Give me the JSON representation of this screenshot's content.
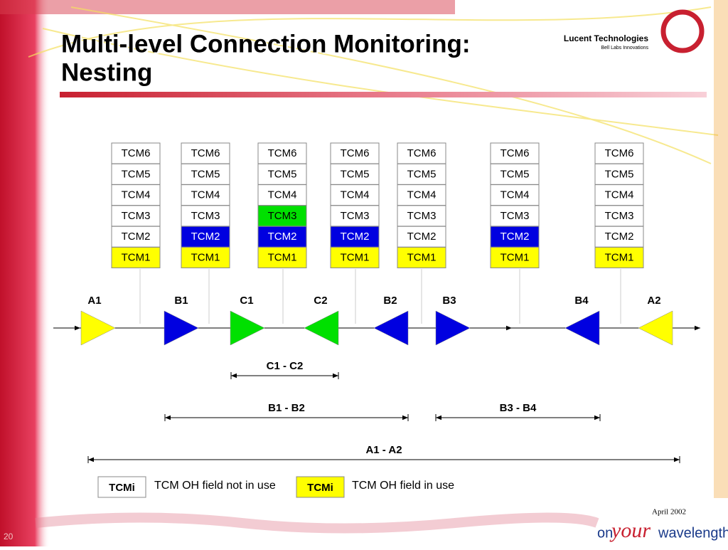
{
  "header": {
    "title_lines": [
      "Multi-level Connection Monitoring:",
      "Nesting"
    ],
    "logo": {
      "name": "Lucent Technologies",
      "tagline": "Bell Labs Innovations"
    }
  },
  "stacks": [
    {
      "cells": [
        {
          "label": "TCM6",
          "fill": "#ffffff"
        },
        {
          "label": "TCM5",
          "fill": "#ffffff"
        },
        {
          "label": "TCM4",
          "fill": "#ffffff"
        },
        {
          "label": "TCM3",
          "fill": "#ffffff"
        },
        {
          "label": "TCM2",
          "fill": "#ffffff"
        },
        {
          "label": "TCM1",
          "fill": "#ffff00"
        }
      ]
    },
    {
      "cells": [
        {
          "label": "TCM6",
          "fill": "#ffffff"
        },
        {
          "label": "TCM5",
          "fill": "#ffffff"
        },
        {
          "label": "TCM4",
          "fill": "#ffffff"
        },
        {
          "label": "TCM3",
          "fill": "#ffffff"
        },
        {
          "label": "TCM2",
          "fill": "#0000e0"
        },
        {
          "label": "TCM1",
          "fill": "#ffff00"
        }
      ]
    },
    {
      "cells": [
        {
          "label": "TCM6",
          "fill": "#ffffff"
        },
        {
          "label": "TCM5",
          "fill": "#ffffff"
        },
        {
          "label": "TCM4",
          "fill": "#ffffff"
        },
        {
          "label": "TCM3",
          "fill": "#00e000"
        },
        {
          "label": "TCM2",
          "fill": "#0000e0"
        },
        {
          "label": "TCM1",
          "fill": "#ffff00"
        }
      ]
    },
    {
      "cells": [
        {
          "label": "TCM6",
          "fill": "#ffffff"
        },
        {
          "label": "TCM5",
          "fill": "#ffffff"
        },
        {
          "label": "TCM4",
          "fill": "#ffffff"
        },
        {
          "label": "TCM3",
          "fill": "#ffffff"
        },
        {
          "label": "TCM2",
          "fill": "#0000e0"
        },
        {
          "label": "TCM1",
          "fill": "#ffff00"
        }
      ]
    },
    {
      "cells": [
        {
          "label": "TCM6",
          "fill": "#ffffff"
        },
        {
          "label": "TCM5",
          "fill": "#ffffff"
        },
        {
          "label": "TCM4",
          "fill": "#ffffff"
        },
        {
          "label": "TCM3",
          "fill": "#ffffff"
        },
        {
          "label": "TCM2",
          "fill": "#ffffff"
        },
        {
          "label": "TCM1",
          "fill": "#ffff00"
        }
      ]
    },
    {
      "cells": [
        {
          "label": "TCM6",
          "fill": "#ffffff"
        },
        {
          "label": "TCM5",
          "fill": "#ffffff"
        },
        {
          "label": "TCM4",
          "fill": "#ffffff"
        },
        {
          "label": "TCM3",
          "fill": "#ffffff"
        },
        {
          "label": "TCM2",
          "fill": "#0000e0"
        },
        {
          "label": "TCM1",
          "fill": "#ffff00"
        }
      ]
    },
    {
      "cells": [
        {
          "label": "TCM6",
          "fill": "#ffffff"
        },
        {
          "label": "TCM5",
          "fill": "#ffffff"
        },
        {
          "label": "TCM4",
          "fill": "#ffffff"
        },
        {
          "label": "TCM3",
          "fill": "#ffffff"
        },
        {
          "label": "TCM2",
          "fill": "#ffffff"
        },
        {
          "label": "TCM1",
          "fill": "#ffff00"
        }
      ]
    }
  ],
  "nodes": [
    {
      "label": "A1",
      "direction": "right",
      "fill": "#ffff00"
    },
    {
      "label": "B1",
      "direction": "right",
      "fill": "#0000e0"
    },
    {
      "label": "C1",
      "direction": "right",
      "fill": "#00e000"
    },
    {
      "label": "C2",
      "direction": "left",
      "fill": "#00e000"
    },
    {
      "label": "B2",
      "direction": "left",
      "fill": "#0000e0"
    },
    {
      "label": "B3",
      "direction": "right",
      "fill": "#0000e0"
    },
    {
      "label": "B4",
      "direction": "left",
      "fill": "#0000e0"
    },
    {
      "label": "A2",
      "direction": "left",
      "fill": "#ffff00"
    }
  ],
  "spans": [
    {
      "label": "C1 - C2"
    },
    {
      "label": "B1 - B2"
    },
    {
      "label": "B3 - B4"
    },
    {
      "label": "A1 - A2"
    }
  ],
  "legend": [
    {
      "box": "TCMi",
      "fill": "#ffffff",
      "text": "TCM OH field not in use"
    },
    {
      "box": "TCMi",
      "fill": "#ffff00",
      "text": "TCM OH field in use"
    }
  ],
  "footer": {
    "date": "April 2002",
    "page": "20",
    "brand": [
      "on",
      "your",
      "wavelength"
    ]
  }
}
